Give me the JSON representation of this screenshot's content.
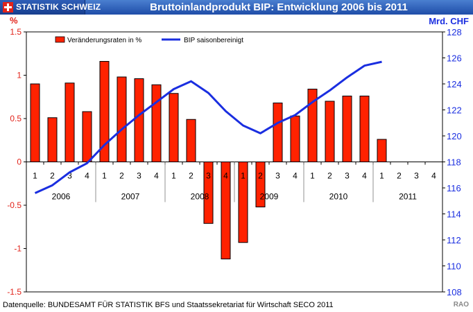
{
  "header": {
    "brand": "STATISTIK SCHWEIZ",
    "title": "Bruttoinlandprodukt BIP: Entwicklung 2006 bis 2011"
  },
  "footer": {
    "source": "Datenquelle: BUNDESAMT FÜR STATISTIK BFS und Staatssekretariat für Wirtschaft SECO 2011",
    "credit": "RAO"
  },
  "chart_data": {
    "type": "bar",
    "title": "Bruttoinlandprodukt BIP: Entwicklung 2006 bis 2011",
    "quarter_labels": [
      "1",
      "2",
      "3",
      "4",
      "1",
      "2",
      "3",
      "4",
      "1",
      "2",
      "3",
      "4",
      "1",
      "2",
      "3",
      "4",
      "1",
      "2",
      "3",
      "4",
      "1",
      "2",
      "3",
      "4"
    ],
    "years": [
      "2006",
      "2007",
      "2008",
      "2009",
      "2010",
      "2011"
    ],
    "y_left": {
      "label": "%",
      "ylim": [
        -1.5,
        1.5
      ],
      "ticks": [
        "-1.5",
        "-1",
        "-0.5",
        "0",
        "0.5",
        "1",
        "1.5"
      ]
    },
    "y_right": {
      "label": "Mrd. CHF",
      "ylim": [
        108,
        128
      ],
      "ticks": [
        "108",
        "110",
        "112",
        "114",
        "116",
        "118",
        "120",
        "122",
        "124",
        "126",
        "128"
      ]
    },
    "series": [
      {
        "name": "Veränderungsraten in %",
        "type": "bar",
        "axis": "left",
        "color": "#ff2200",
        "values": [
          0.9,
          0.51,
          0.91,
          0.58,
          1.16,
          0.98,
          0.96,
          0.89,
          0.79,
          0.49,
          -0.71,
          -1.12,
          -0.93,
          -0.52,
          0.68,
          0.53,
          0.84,
          0.7,
          0.76,
          0.76,
          0.26,
          null,
          null,
          null
        ]
      },
      {
        "name": "BIP saisonbereinigt",
        "type": "line",
        "axis": "right",
        "color": "#1a2ee0",
        "values": [
          115.6,
          116.2,
          117.2,
          117.9,
          119.3,
          120.5,
          121.6,
          122.6,
          123.6,
          124.2,
          123.3,
          121.9,
          120.8,
          120.2,
          121.0,
          121.6,
          122.6,
          123.5,
          124.5,
          125.4,
          125.7,
          null,
          null,
          null
        ]
      }
    ],
    "legend_position": "top-left",
    "grid": false
  }
}
